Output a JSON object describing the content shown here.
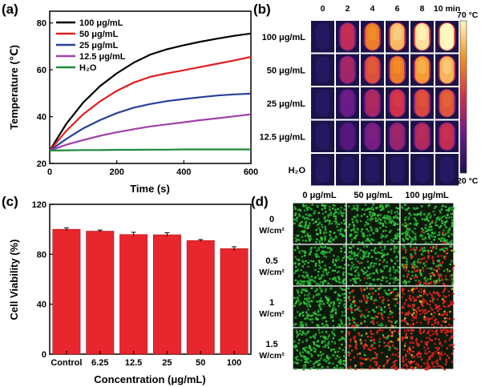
{
  "panels": {
    "a": "(a)",
    "b": "(b)",
    "c": "(c)",
    "d": "(d)"
  },
  "chart_data": [
    {
      "panel": "a",
      "type": "line",
      "xlabel": "Time (s)",
      "ylabel": "Temperature (℃)",
      "xlim": [
        0,
        600
      ],
      "ylim": [
        20,
        85
      ],
      "xticks": [
        0,
        200,
        400,
        600
      ],
      "yticks": [
        20,
        40,
        60,
        80
      ],
      "x": [
        0,
        50,
        100,
        150,
        200,
        250,
        300,
        350,
        400,
        450,
        500,
        550,
        600
      ],
      "series": [
        {
          "name": "100 μg/mL",
          "color": "#000000",
          "values": [
            25.5,
            37.0,
            46.0,
            53.0,
            58.5,
            63.0,
            66.5,
            68.8,
            70.5,
            72.0,
            73.3,
            74.5,
            75.5
          ]
        },
        {
          "name": "50  μg/mL",
          "color": "#e02020",
          "values": [
            25.5,
            34.0,
            41.0,
            46.5,
            51.0,
            54.5,
            57.0,
            58.5,
            59.8,
            61.2,
            62.6,
            64.0,
            65.5
          ]
        },
        {
          "name": "25  μg/mL",
          "color": "#2a3f9a",
          "values": [
            25.5,
            30.5,
            35.0,
            38.5,
            41.5,
            43.8,
            45.4,
            46.6,
            47.5,
            48.3,
            49.0,
            49.5,
            49.8
          ]
        },
        {
          "name": "12.5 μg/mL",
          "color": "#a040a8",
          "values": [
            25.5,
            28.0,
            30.0,
            31.8,
            33.3,
            34.6,
            35.8,
            36.7,
            37.6,
            38.5,
            39.3,
            40.1,
            41.0
          ]
        },
        {
          "name": "H₂O",
          "color": "#1e8a3a",
          "values": [
            25.5,
            25.6,
            25.7,
            25.7,
            25.8,
            25.8,
            25.9,
            25.9,
            26.0,
            26.0,
            26.0,
            26.0,
            26.0
          ]
        }
      ]
    },
    {
      "panel": "b",
      "type": "heatmap",
      "time_labels": [
        "0",
        "2",
        "4",
        "6",
        "8",
        "10 min"
      ],
      "row_labels": [
        "100 μg/mL",
        "50 μg/mL",
        "25 μg/mL",
        "12.5 μg/mL",
        "H₂O"
      ],
      "intensity": [
        [
          0.0,
          0.45,
          0.7,
          0.85,
          0.94,
          1.0
        ],
        [
          0.0,
          0.38,
          0.58,
          0.7,
          0.78,
          0.84
        ],
        [
          0.0,
          0.25,
          0.4,
          0.5,
          0.56,
          0.6
        ],
        [
          0.0,
          0.18,
          0.28,
          0.36,
          0.42,
          0.46
        ],
        [
          0.0,
          0.0,
          0.0,
          0.0,
          0.0,
          0.0
        ]
      ],
      "colorbar_max": "70 °C",
      "colorbar_min": "20 °C"
    },
    {
      "panel": "c",
      "type": "bar",
      "xlabel": "Concentration (μg/mL)",
      "ylabel": "Cell Viability (%)",
      "ylim": [
        0,
        120
      ],
      "yticks": [
        0,
        40,
        80,
        120
      ],
      "categories": [
        "Control",
        "6.25",
        "12.5",
        "25",
        "50",
        "100"
      ],
      "values": [
        100,
        98.5,
        95.8,
        95.6,
        91,
        84.5
      ],
      "errors": [
        1.2,
        0.9,
        1.8,
        1.6,
        0.8,
        1.5
      ],
      "color": "#e8262d"
    },
    {
      "panel": "d",
      "type": "table",
      "col_labels": [
        "0 μg/mL",
        "50 μg/mL",
        "100 μg/mL"
      ],
      "row_labels": [
        {
          "value": "0",
          "unit": "W/cm²"
        },
        {
          "value": "0.5",
          "unit": "W/cm²"
        },
        {
          "value": "1",
          "unit": "W/cm²"
        },
        {
          "value": "1.5",
          "unit": "W/cm²"
        }
      ],
      "dead_fraction": [
        [
          0.0,
          0.0,
          0.02
        ],
        [
          0.0,
          0.02,
          0.45
        ],
        [
          0.0,
          0.4,
          0.85
        ],
        [
          0.0,
          0.75,
          0.95
        ]
      ],
      "coverage": [
        [
          0.85,
          0.85,
          0.85
        ],
        [
          0.75,
          0.75,
          0.85
        ],
        [
          0.8,
          0.65,
          0.8
        ],
        [
          0.8,
          0.6,
          0.8
        ]
      ]
    }
  ]
}
